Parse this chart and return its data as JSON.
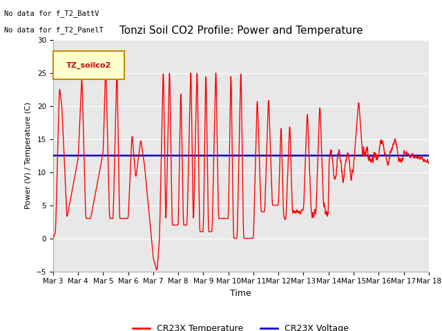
{
  "title": "Tonzi Soil CO2 Profile: Power and Temperature",
  "xlabel": "Time",
  "ylabel": "Power (V) / Temperature (C)",
  "ylim": [
    -5,
    30
  ],
  "yticks": [
    -5,
    0,
    5,
    10,
    15,
    20,
    25,
    30
  ],
  "annotation_text1": "No data for f_T2_BattV",
  "annotation_text2": "No data for f_T2_PanelT",
  "legend_label_box": "TZ_soilco2",
  "legend_temp": "CR23X Temperature",
  "legend_volt": "CR23X Voltage",
  "temp_color": "#ff0000",
  "volt_color": "#0000cc",
  "volt_value": 12.5,
  "background_color": "#ffffff",
  "plot_bg_color": "#e8e8e8",
  "title_fontsize": 11,
  "tick_fontsize": 7.5,
  "xtick_labels": [
    "Mar 3",
    "Mar 4",
    "Mar 5",
    "Mar 6",
    "Mar 7",
    "Mar 8",
    "Mar 9",
    "Mar 10",
    "Mar 11",
    "Mar 12",
    "Mar 13",
    "Mar 14",
    "Mar 15",
    "Mar 16",
    "Mar 17",
    "Mar 18"
  ],
  "num_days": 16
}
